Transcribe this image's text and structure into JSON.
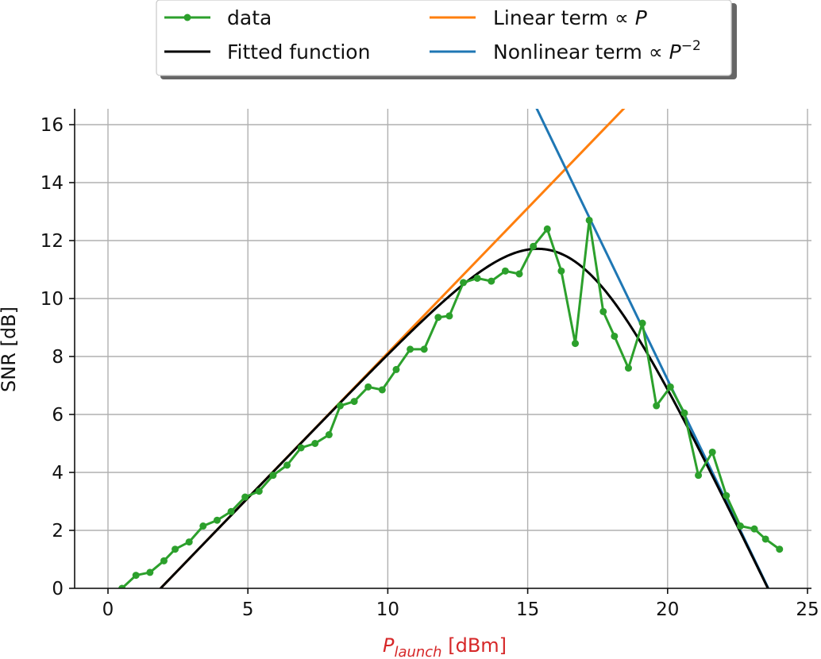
{
  "chart_data": {
    "type": "line",
    "xlabel": {
      "main": "P",
      "subscript": "launch",
      "unit": " [dBm]",
      "color": "#d62728"
    },
    "ylabel": "SNR [dB]",
    "xlim": [
      -1.2,
      25.2
    ],
    "ylim": [
      0,
      16.6
    ],
    "xticks": [
      0,
      5,
      10,
      15,
      20,
      25
    ],
    "yticks": [
      0,
      2,
      4,
      6,
      8,
      10,
      12,
      14,
      16
    ],
    "grid": true,
    "legend_position": "top-center",
    "series": [
      {
        "name": "data",
        "color": "#2ca02c",
        "marker": "dot",
        "x": [
          0.5,
          1.0,
          1.5,
          2.0,
          2.4,
          2.9,
          3.4,
          3.9,
          4.4,
          4.9,
          5.4,
          5.9,
          6.4,
          6.9,
          7.4,
          7.9,
          8.3,
          8.8,
          9.3,
          9.8,
          10.3,
          10.8,
          11.3,
          11.8,
          12.2,
          12.7,
          13.2,
          13.7,
          14.2,
          14.7,
          15.2,
          15.7,
          16.2,
          16.7,
          17.2,
          17.7,
          18.1,
          18.6,
          19.1,
          19.6,
          20.1,
          20.6,
          21.1,
          21.6,
          22.1,
          22.6,
          23.1,
          23.5,
          24.0
        ],
        "y": [
          0.0,
          0.45,
          0.55,
          0.95,
          1.35,
          1.6,
          2.15,
          2.35,
          2.65,
          3.15,
          3.35,
          3.9,
          4.25,
          4.85,
          5.0,
          5.3,
          6.3,
          6.45,
          6.95,
          6.85,
          7.55,
          8.25,
          8.25,
          9.35,
          9.4,
          10.55,
          10.7,
          10.6,
          10.95,
          10.85,
          11.8,
          12.4,
          10.95,
          8.45,
          12.7,
          9.55,
          8.7,
          7.6,
          9.15,
          6.3,
          6.95,
          6.05,
          3.9,
          4.7,
          3.2,
          2.15,
          2.05,
          1.7,
          1.35
        ]
      },
      {
        "name": "Fitted function",
        "color": "#000000",
        "model": "fitted",
        "peak_x": 15.4,
        "peak_y": 11.71
      },
      {
        "name": "Linear term",
        "name_math": "∝ P",
        "color": "#ff7f0e",
        "model": "linear",
        "slope": 1.0,
        "intercept": -1.88
      },
      {
        "name": "Nonlinear term",
        "name_math": "∝ P",
        "name_sup": "−2",
        "color": "#1f77b4",
        "model": "nonlinear",
        "slope": -2.0,
        "intercept": 47.2
      }
    ]
  }
}
